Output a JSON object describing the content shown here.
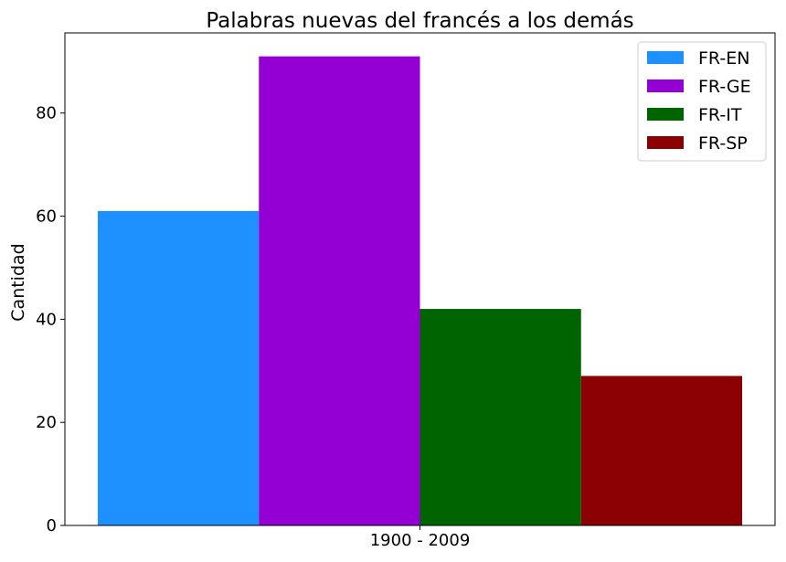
{
  "chart_data": {
    "type": "bar",
    "title": "Palabras nuevas del francés a los demás",
    "xlabel": "",
    "ylabel": "Cantidad",
    "categories": [
      "1900 - 2009"
    ],
    "series": [
      {
        "name": "FR-EN",
        "values": [
          61
        ],
        "color": "#1e90ff"
      },
      {
        "name": "FR-GE",
        "values": [
          91
        ],
        "color": "#9400d3"
      },
      {
        "name": "FR-IT",
        "values": [
          42
        ],
        "color": "#006400"
      },
      {
        "name": "FR-SP",
        "values": [
          29
        ],
        "color": "#8b0000"
      }
    ],
    "ylim": [
      0,
      95.55
    ],
    "yticks": [
      0,
      20,
      40,
      60,
      80
    ],
    "grid": false,
    "legend_position": "top-right"
  }
}
